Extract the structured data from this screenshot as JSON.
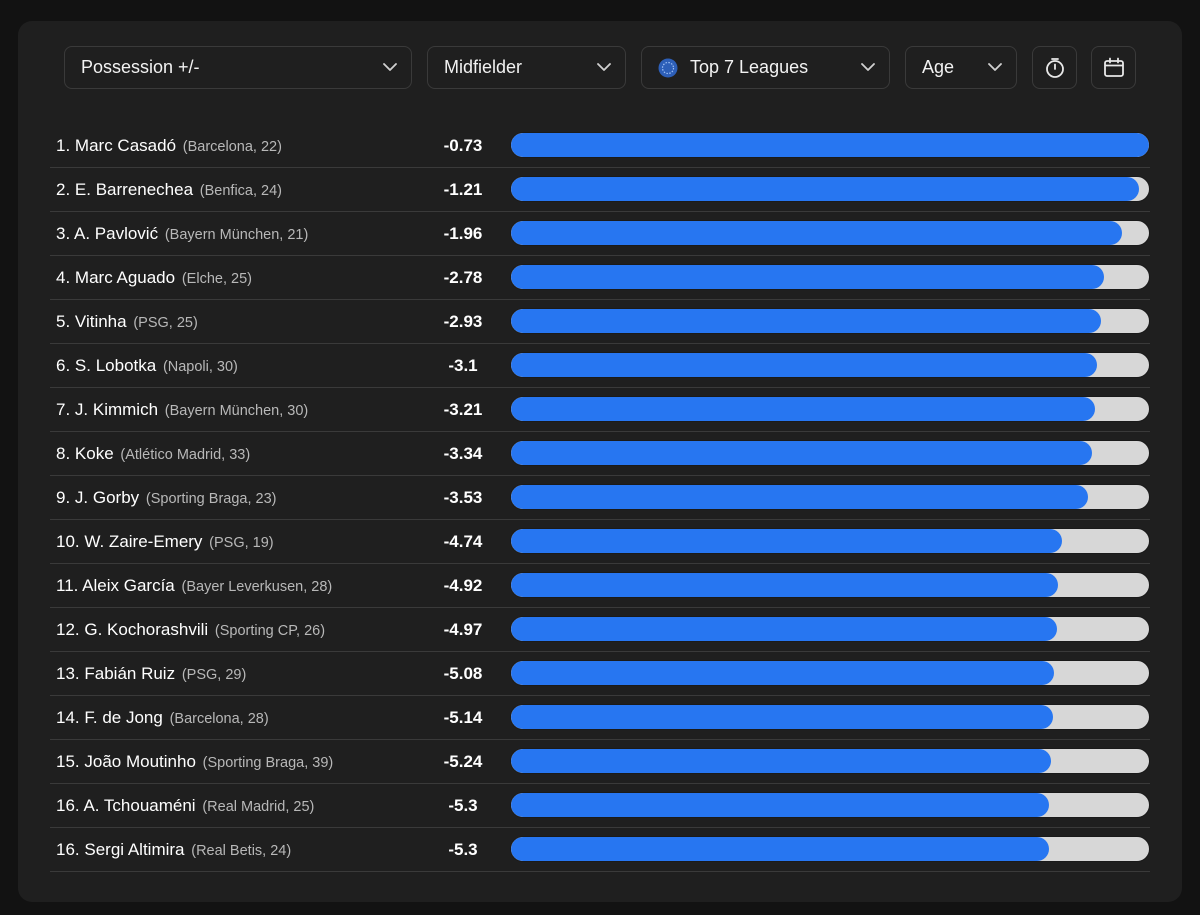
{
  "filters": {
    "metric": "Possession +/-",
    "position": "Midfielder",
    "competition": "Top 7 Leagues",
    "sort": "Age"
  },
  "colors": {
    "bar": "#2776f1",
    "track": "#d7d7d7",
    "accent_globe": "#3a6fd8"
  },
  "icons": {
    "timer": "stopwatch-icon",
    "calendar": "calendar-icon",
    "chevron": "chevron-down-icon",
    "globe": "globe-icon"
  },
  "scale": {
    "best": -0.73,
    "reference": -30
  },
  "players": [
    {
      "rank": "1.",
      "name": "Marc Casadó",
      "meta": "(Barcelona, 22)",
      "value": "-0.73",
      "num": -0.73
    },
    {
      "rank": "2.",
      "name": "E. Barrenechea",
      "meta": "(Benfica, 24)",
      "value": "-1.21",
      "num": -1.21
    },
    {
      "rank": "3.",
      "name": "A. Pavlović",
      "meta": "(Bayern München, 21)",
      "value": "-1.96",
      "num": -1.96
    },
    {
      "rank": "4.",
      "name": "Marc Aguado",
      "meta": "(Elche, 25)",
      "value": "-2.78",
      "num": -2.78
    },
    {
      "rank": "5.",
      "name": "Vitinha",
      "meta": "(PSG, 25)",
      "value": "-2.93",
      "num": -2.93
    },
    {
      "rank": "6.",
      "name": "S. Lobotka",
      "meta": "(Napoli, 30)",
      "value": "-3.1",
      "num": -3.1
    },
    {
      "rank": "7.",
      "name": "J. Kimmich",
      "meta": "(Bayern München, 30)",
      "value": "-3.21",
      "num": -3.21
    },
    {
      "rank": "8.",
      "name": "Koke",
      "meta": "(Atlético Madrid, 33)",
      "value": "-3.34",
      "num": -3.34
    },
    {
      "rank": "9.",
      "name": "J. Gorby",
      "meta": "(Sporting Braga, 23)",
      "value": "-3.53",
      "num": -3.53
    },
    {
      "rank": "10.",
      "name": "W. Zaire-Emery",
      "meta": "(PSG, 19)",
      "value": "-4.74",
      "num": -4.74
    },
    {
      "rank": "11.",
      "name": "Aleix García",
      "meta": "(Bayer Leverkusen, 28)",
      "value": "-4.92",
      "num": -4.92
    },
    {
      "rank": "12.",
      "name": "G. Kochorashvili",
      "meta": "(Sporting CP, 26)",
      "value": "-4.97",
      "num": -4.97
    },
    {
      "rank": "13.",
      "name": "Fabián Ruiz",
      "meta": "(PSG, 29)",
      "value": "-5.08",
      "num": -5.08
    },
    {
      "rank": "14.",
      "name": "F. de Jong",
      "meta": "(Barcelona, 28)",
      "value": "-5.14",
      "num": -5.14
    },
    {
      "rank": "15.",
      "name": "João Moutinho",
      "meta": "(Sporting Braga, 39)",
      "value": "-5.24",
      "num": -5.24
    },
    {
      "rank": "16.",
      "name": "A. Tchouaméni",
      "meta": "(Real Madrid, 25)",
      "value": "-5.3",
      "num": -5.3
    },
    {
      "rank": "16.",
      "name": "Sergi Altimira",
      "meta": "(Real Betis, 24)",
      "value": "-5.3",
      "num": -5.3
    }
  ]
}
